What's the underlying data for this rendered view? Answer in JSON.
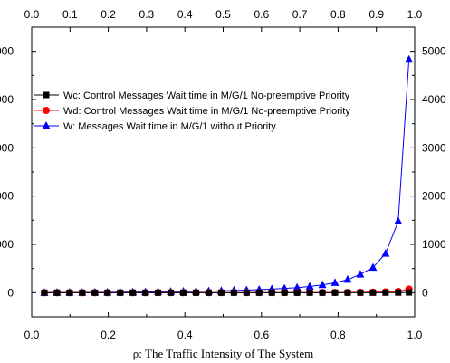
{
  "chart_data": {
    "type": "line",
    "xlabel": "ρ: The Traffic Intensity of The System",
    "xlim": [
      0.0,
      1.0
    ],
    "ylim": [
      -500,
      5500
    ],
    "x_ticks_bottom": [
      "0.0",
      "0.2",
      "0.4",
      "0.6",
      "0.8",
      "1.0"
    ],
    "x_ticks_top": [
      "0.0",
      "0.1",
      "0.2",
      "0.3",
      "0.4",
      "0.5",
      "0.6",
      "0.7",
      "0.8",
      "0.9",
      "1.0"
    ],
    "y_ticks_right": [
      "0",
      "1000",
      "2000",
      "3000",
      "4000",
      "5000"
    ],
    "y_ticks_left": [
      "0",
      "000",
      "000",
      "000",
      "000",
      "000"
    ],
    "legend_position": "upper-left",
    "series": [
      {
        "name": "Wc: Control Messages Wait time in M/G/1  No-preemptive Priority",
        "color": "#000000",
        "marker": "square",
        "x": [
          0.033,
          0.066,
          0.099,
          0.132,
          0.165,
          0.198,
          0.231,
          0.264,
          0.297,
          0.33,
          0.363,
          0.396,
          0.429,
          0.462,
          0.495,
          0.528,
          0.561,
          0.594,
          0.627,
          0.66,
          0.693,
          0.726,
          0.759,
          0.792,
          0.825,
          0.858,
          0.891,
          0.924,
          0.957,
          0.985
        ],
        "y": [
          0,
          0,
          0,
          0,
          0,
          0,
          0,
          0,
          0,
          0,
          0,
          0,
          0,
          0,
          0,
          0,
          0,
          0,
          0,
          0,
          0,
          0,
          0,
          0,
          0,
          0,
          0,
          1,
          2,
          5
        ]
      },
      {
        "name": "Wd: Control Messages Wait time in M/G/1  No-preemptive Priority",
        "color": "#ff0000",
        "marker": "circle",
        "x": [
          0.033,
          0.066,
          0.099,
          0.132,
          0.165,
          0.198,
          0.231,
          0.264,
          0.297,
          0.33,
          0.363,
          0.396,
          0.429,
          0.462,
          0.495,
          0.528,
          0.561,
          0.594,
          0.627,
          0.66,
          0.693,
          0.726,
          0.759,
          0.792,
          0.825,
          0.858,
          0.891,
          0.924,
          0.957,
          0.985
        ],
        "y": [
          0,
          0,
          0,
          0,
          0,
          0,
          0,
          0,
          0,
          1,
          1,
          1,
          1,
          1,
          1,
          2,
          2,
          2,
          2,
          3,
          3,
          4,
          4,
          5,
          6,
          8,
          10,
          15,
          25,
          75
        ]
      },
      {
        "name": "W:  Messages Wait time in M/G/1  without Priority",
        "color": "#0000ff",
        "marker": "triangle",
        "x": [
          0.033,
          0.066,
          0.099,
          0.132,
          0.165,
          0.198,
          0.231,
          0.264,
          0.297,
          0.33,
          0.363,
          0.396,
          0.429,
          0.462,
          0.495,
          0.528,
          0.561,
          0.594,
          0.627,
          0.66,
          0.693,
          0.726,
          0.759,
          0.792,
          0.825,
          0.858,
          0.891,
          0.924,
          0.957,
          0.985
        ],
        "y": [
          2,
          3,
          4,
          5,
          6,
          8,
          10,
          12,
          14,
          17,
          20,
          24,
          28,
          33,
          39,
          46,
          54,
          63,
          74,
          88,
          105,
          128,
          160,
          205,
          270,
          380,
          520,
          810,
          1480,
          4830
        ]
      }
    ]
  }
}
